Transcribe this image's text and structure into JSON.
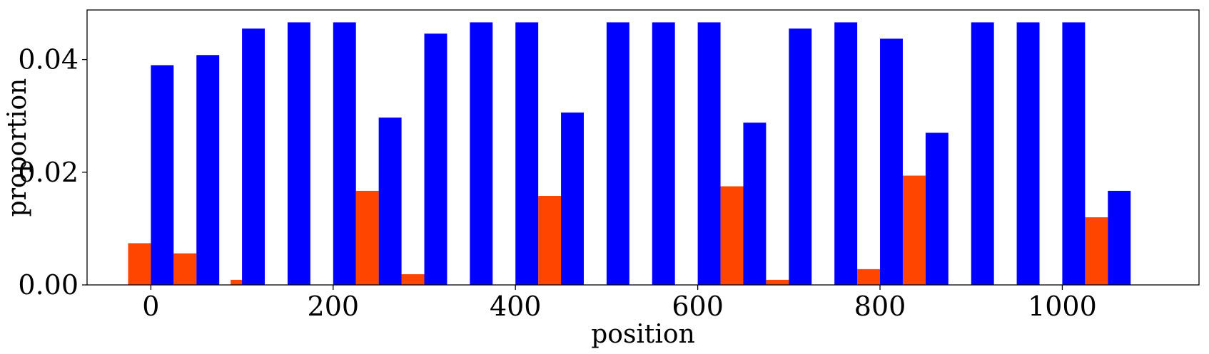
{
  "chart_data": {
    "type": "bar",
    "xlabel": "position",
    "ylabel": "proportion",
    "xlim": [
      -70,
      1150
    ],
    "ylim": [
      0,
      0.0488
    ],
    "xticks": [
      0,
      200,
      400,
      600,
      800,
      1000
    ],
    "xtick_labels": [
      "0",
      "200",
      "400",
      "600",
      "800",
      "1000"
    ],
    "yticks": [
      0,
      0.02,
      0.04
    ],
    "ytick_labels": [
      "0.00",
      "0.02",
      "0.04"
    ],
    "bar_width": 25,
    "grid": false,
    "legend": "none",
    "series": [
      {
        "color": "#FF4500",
        "x": [
          -12.5,
          37.5,
          100,
          237.5,
          287.5,
          437.5,
          637.5,
          687.5,
          787.5,
          837.5,
          1037.5
        ],
        "values": [
          0.0074,
          0.0056,
          0.0009,
          0.0167,
          0.0019,
          0.0158,
          0.0175,
          0.0009,
          0.0028,
          0.0194,
          0.012
        ]
      },
      {
        "color": "#0000FF",
        "x": [
          12.5,
          62.5,
          112.5,
          162.5,
          212.5,
          262.5,
          312.5,
          362.5,
          412.5,
          462.5,
          512.5,
          562.5,
          612.5,
          662.5,
          712.5,
          762.5,
          812.5,
          862.5,
          912.5,
          962.5,
          1012.5,
          1062.5
        ],
        "values": [
          0.039,
          0.0408,
          0.0455,
          0.0466,
          0.0466,
          0.0297,
          0.0446,
          0.0466,
          0.0466,
          0.0306,
          0.0466,
          0.0466,
          0.0466,
          0.0288,
          0.0455,
          0.0466,
          0.0437,
          0.027,
          0.0466,
          0.0466,
          0.0466,
          0.0167
        ]
      }
    ]
  }
}
